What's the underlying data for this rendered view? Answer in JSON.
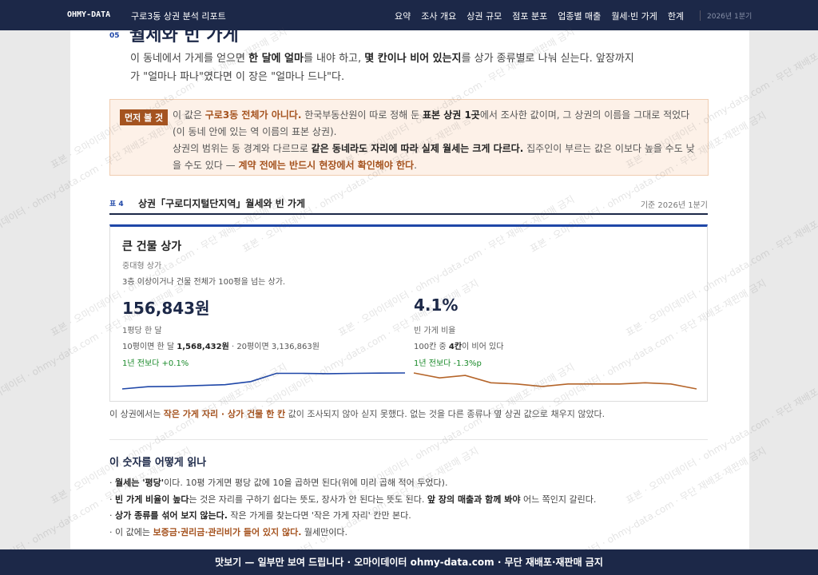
{
  "nav": {
    "logo": "OHMY-DATA",
    "report": "구로3동 상권 분석 리포트",
    "items": [
      "요약",
      "조사 개요",
      "상권 규모",
      "점포 분포",
      "업종별 매출",
      "월세·빈 가게",
      "한계"
    ],
    "period": "2026년 1분기"
  },
  "section": {
    "number": "05",
    "title": "월세와 빈 가게",
    "intro": [
      "이 동네에서 가게를 얻으면 ",
      "한 달에 얼마",
      "를 내야 하고, ",
      "몇 칸이나 비어 있는지",
      "를 상가 종류별로 나눠 싣는다. 앞장까지가 \"얼마나 파나\"였다면 이 장은 \"얼마나 드나\"다."
    ]
  },
  "notice": {
    "badge": "먼저 볼 것",
    "paragraphs": [
      [
        "이 값은 ",
        "구로3동 전체가 아니다.",
        " 한국부동산원이 따로 정해 둔 ",
        "표본 상권 1곳",
        "에서 조사한 값이며, 그 상권의 이름을 그대로 적었다(이 동네 안에 있는 역 이름의 표본 상권)."
      ],
      [
        "상권의 범위는 동 경계와 다르므로 ",
        "같은 동네라도 자리에 따라 실제 월세는 크게 다르다.",
        " 집주인이 부르는 값은 이보다 높을 수도 낮을 수도 있다 — ",
        "계약 전에는 반드시 현장에서 확인해야 한다",
        "."
      ]
    ]
  },
  "table": {
    "label": "표 4",
    "title": "상권「구로디지털단지역」월세와 빈 가게",
    "basis": "기준 2026년 1분기",
    "card": {
      "name": "큰 건물 상가",
      "type": "중대형 상가",
      "desc": "3층 이상이거나 건물 전체가 100평을 넘는 상가.",
      "rent": {
        "value": "156,843원",
        "unit": "1평당 한 달",
        "detail": [
          "10평이면 한 달 ",
          "1,568,432원",
          " · 20평이면 ",
          "3,136,863원"
        ],
        "change": "1년 전보다 +0.1%",
        "color": "#1f47a8",
        "trend": [
          151200,
          152000,
          152100,
          152400,
          152700,
          153800,
          156700,
          156700,
          156600,
          156700,
          156800,
          156843
        ]
      },
      "vacancy": {
        "value": "4.1%",
        "unit": "빈 가게 비율",
        "detail": [
          "100칸 중 ",
          "4칸",
          "이 비어 있다"
        ],
        "change": "1년 전보다 -1.3%p",
        "color": "#b5652a",
        "trend": [
          5.4,
          5.0,
          5.2,
          4.6,
          4.5,
          4.3,
          4.5,
          4.5,
          4.5,
          4.6,
          4.5,
          4.1
        ]
      }
    },
    "missing": [
      "이 상권에서는 ",
      "작은 가게 자리 · 상가 건물 한 칸",
      " 값이 조사되지 않아 싣지 못했다. 없는 것을 다른 종류나 옆 상권 값으로 채우지 않았다."
    ]
  },
  "reading": {
    "title": "이 숫자를 어떻게 읽나",
    "items": [
      [
        "· ",
        "월세는 '평당'",
        "이다. 10평 가게면 평당 값에 10을 곱하면 된다(위에 미리 곱해 적어 두었다)."
      ],
      [
        "· ",
        "빈 가게 비율이 높다",
        "는 것은 자리를 구하기 쉽다는 뜻도, 장사가 안 된다는 뜻도 된다. ",
        "앞 장의 매출과 함께 봐야",
        " 어느 쪽인지 갈린다."
      ],
      [
        "· ",
        "상가 종류를 섞어 보지 않는다.",
        " 작은 가게를 찾는다면 '작은 가게 자리' 칸만 본다."
      ],
      [
        "· 이 값에는 ",
        "보증금·권리금·관리비가 들어 있지 않다.",
        " 월세만이다."
      ]
    ]
  },
  "footer": "맛보기 — 일부만 보여 드립니다 · 오마이데이터 ohmy-data.com · 무단 재배포·재판매 금지",
  "watermark": "표본 · 오마이데이터 · ohmy-data.com · 무단 재배포·재판매 금지"
}
